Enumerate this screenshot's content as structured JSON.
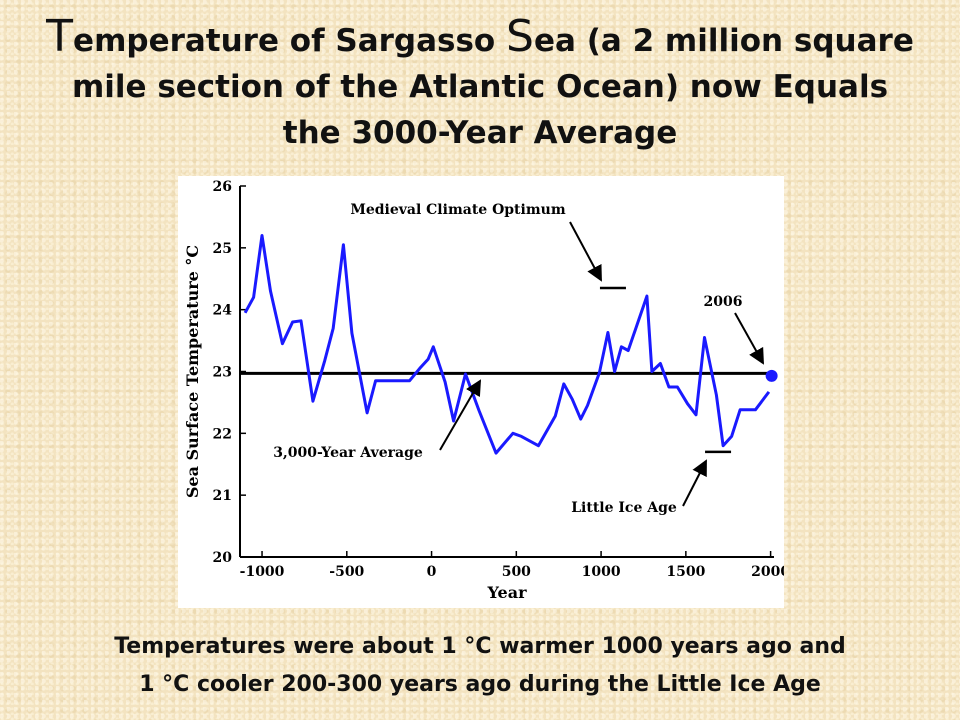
{
  "title": {
    "cap1": "T",
    "part1": "emperature of ",
    "word_sargasso": "Sargasso ",
    "cap2": "S",
    "part2": "ea (a 2 million square",
    "line2": "mile section of the Atlantic Ocean) now Equals",
    "line3": "the 3000-Year Average"
  },
  "caption": {
    "line1": "Temperatures were about 1 °C warmer 1000 years ago and",
    "line2": "1 °C cooler 200-300 years ago during the Little Ice Age"
  },
  "chart_data": {
    "type": "line",
    "xlabel": "Year",
    "ylabel": "Sea Surface Temperature °C",
    "xlim": [
      -1130,
      2020
    ],
    "ylim": [
      20,
      26
    ],
    "xticks": [
      -1000,
      -500,
      0,
      500,
      1000,
      1500,
      2000
    ],
    "xtick_labels": [
      "-1000",
      "-500",
      "0",
      "500",
      "1000",
      "1500",
      "2000"
    ],
    "yticks": [
      20,
      21,
      22,
      23,
      24,
      25,
      26
    ],
    "ytick_labels": [
      "20",
      "21",
      "22",
      "23",
      "24",
      "25",
      "26"
    ],
    "grid": false,
    "series_color": "#1a1aff",
    "average_line": {
      "label": "3,000-Year Average",
      "value": 22.97,
      "color": "#000000"
    },
    "x": [
      -1100,
      -1050,
      -1000,
      -950,
      -880,
      -820,
      -770,
      -700,
      -630,
      -580,
      -520,
      -470,
      -380,
      -330,
      -280,
      -180,
      -130,
      -70,
      -20,
      10,
      80,
      130,
      200,
      280,
      380,
      480,
      530,
      630,
      730,
      780,
      830,
      880,
      920,
      990,
      1040,
      1080,
      1120,
      1160,
      1270,
      1300,
      1350,
      1400,
      1450,
      1510,
      1560,
      1610,
      1680,
      1720,
      1770,
      1820,
      1910,
      1990
    ],
    "y": [
      23.95,
      24.2,
      25.2,
      24.3,
      23.45,
      23.8,
      23.82,
      22.52,
      23.18,
      23.7,
      25.05,
      23.62,
      22.33,
      22.85,
      22.85,
      22.85,
      22.85,
      23.05,
      23.2,
      23.4,
      22.83,
      22.2,
      22.96,
      22.37,
      21.68,
      22.0,
      21.95,
      21.8,
      22.28,
      22.8,
      22.55,
      22.23,
      22.45,
      22.98,
      23.63,
      23.0,
      23.4,
      23.34,
      24.22,
      23.0,
      23.13,
      22.75,
      22.75,
      22.48,
      22.3,
      23.55,
      22.62,
      21.8,
      21.95,
      22.38,
      22.38,
      22.67
    ],
    "highlight_point": {
      "label": "2006",
      "x": 2006,
      "y": 22.93
    },
    "annotations": [
      {
        "text": "Medieval Climate Optimum",
        "x": 1070,
        "y": 24.35
      },
      {
        "text": "2006",
        "x": 2006,
        "y": 22.93
      },
      {
        "text": "3,000-Year Average",
        "x": 300,
        "y": 22.97
      },
      {
        "text": "Little Ice Age",
        "x": 1690,
        "y": 21.7
      }
    ]
  }
}
